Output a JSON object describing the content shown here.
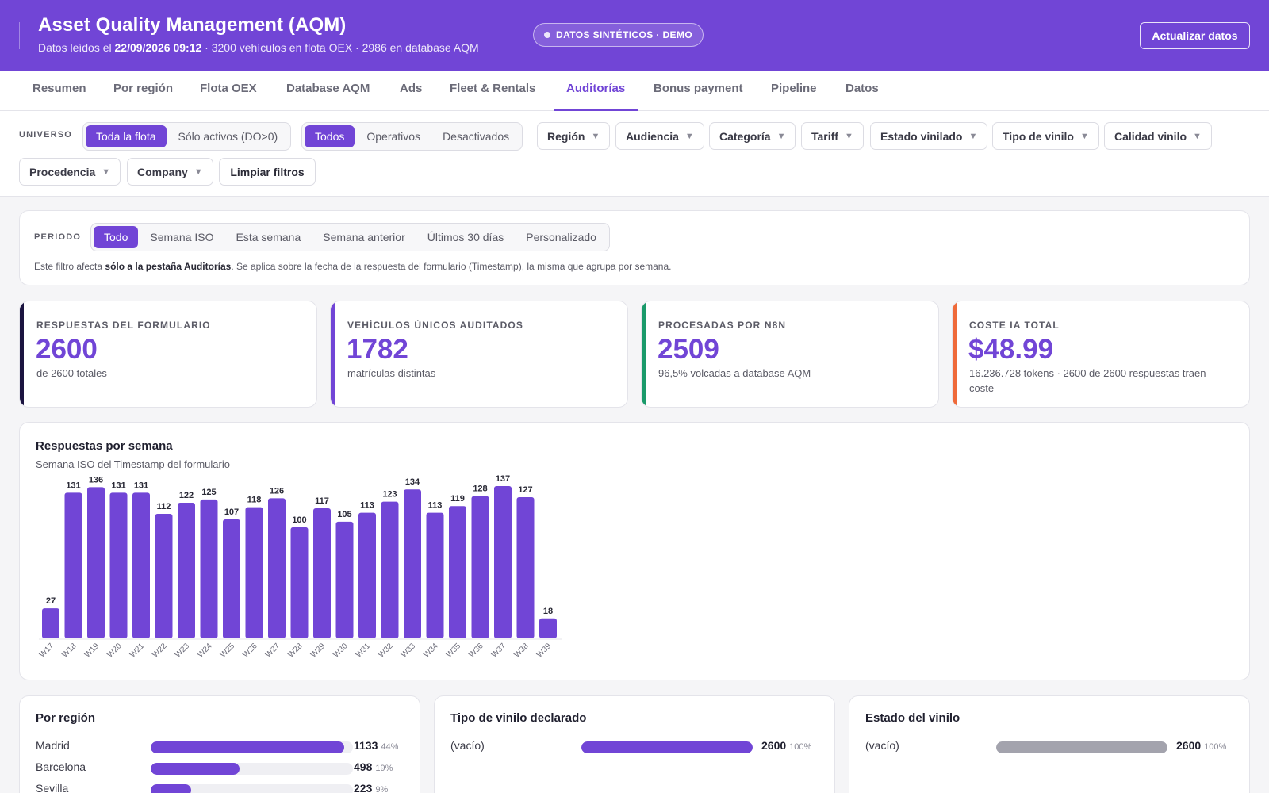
{
  "header": {
    "title": "Asset Quality Management (AQM)",
    "subtitle_prefix": "Datos leídos el",
    "subtitle_date": "22/09/2026 09:12",
    "subtitle_suffix": "· 3200 vehículos en flota OEX · 2986 en database AQM",
    "badge": "DATOS SINTÉTICOS · DEMO",
    "refresh_label": "Actualizar datos"
  },
  "tabs": [
    {
      "label": "Resumen"
    },
    {
      "label": "Por región"
    },
    {
      "label": "Flota OEX"
    },
    {
      "label": "Database AQM"
    },
    {
      "label": "Ads"
    },
    {
      "label": "Fleet & Rentals"
    },
    {
      "label": "Auditorías"
    },
    {
      "label": "Bonus payment"
    },
    {
      "label": "Pipeline"
    },
    {
      "label": "Datos"
    }
  ],
  "active_tab": "Auditorías",
  "filters": {
    "universo_label": "UNIVERSO",
    "universe_options": [
      "Toda la flota",
      "Sólo activos (DO>0)"
    ],
    "universe_selected": "Toda la flota",
    "status_options": [
      "Todos",
      "Operativos",
      "Desactivados"
    ],
    "status_selected": "Todos",
    "dropdowns": [
      "Región",
      "Audiencia",
      "Categoría",
      "Tariff",
      "Estado vinilado",
      "Tipo de vinilo",
      "Calidad vinilo",
      "Procedencia",
      "Company"
    ],
    "clear_label": "Limpiar filtros"
  },
  "periodo": {
    "label": "PERIODO",
    "options": [
      "Todo",
      "Semana ISO",
      "Esta semana",
      "Semana anterior",
      "Últimos 30 días",
      "Personalizado"
    ],
    "selected": "Todo",
    "note_prefix": "Este filtro afecta",
    "note_bold": "sólo a la pestaña Auditorías",
    "note_suffix": ". Se aplica sobre la fecha de la respuesta del formulario (Timestamp), la misma que agrupa por semana."
  },
  "kpis": [
    {
      "label": "RESPUESTAS DEL FORMULARIO",
      "value": "2600",
      "sub": "de 2600 totales",
      "accent": "#1b1440"
    },
    {
      "label": "VEHÍCULOS ÚNICOS AUDITADOS",
      "value": "1782",
      "sub": "matrículas distintas",
      "accent": "#7145d6"
    },
    {
      "label": "PROCESADAS POR N8N",
      "value": "2509",
      "sub": "96,5% volcadas a database AQM",
      "accent": "#1a9a6a"
    },
    {
      "label": "COSTE IA TOTAL",
      "value": "$48.99",
      "sub": "16.236.728 tokens · 2600 de 2600 respuestas traen coste",
      "accent": "#ef6a3a"
    }
  ],
  "chart_data": {
    "type": "bar",
    "title": "Respuestas por semana",
    "subtitle": "Semana ISO del Timestamp del formulario",
    "categories": [
      "W17",
      "W18",
      "W19",
      "W20",
      "W21",
      "W22",
      "W23",
      "W24",
      "W25",
      "W26",
      "W27",
      "W28",
      "W29",
      "W30",
      "W31",
      "W32",
      "W33",
      "W34",
      "W35",
      "W36",
      "W37",
      "W38",
      "W39"
    ],
    "values": [
      27,
      131,
      136,
      131,
      131,
      112,
      122,
      125,
      107,
      118,
      126,
      100,
      117,
      105,
      113,
      123,
      134,
      113,
      119,
      128,
      137,
      127,
      18
    ],
    "ylim": [
      0,
      137
    ],
    "color": "#7145d6",
    "data_labels": true,
    "grid": false
  },
  "distributions": [
    {
      "title": "Por región",
      "rows": [
        {
          "label": "Madrid",
          "count": "1133",
          "pct": "44%",
          "fraction": 0.957
        },
        {
          "label": "Barcelona",
          "count": "498",
          "pct": "19%",
          "fraction": 0.44
        },
        {
          "label": "Sevilla",
          "count": "223",
          "pct": "9%",
          "fraction": 0.2
        }
      ],
      "color": "#7145d6"
    },
    {
      "title": "Tipo de vinilo declarado",
      "rows": [
        {
          "label": "(vacío)",
          "count": "2600",
          "pct": "100%",
          "fraction": 1.0
        }
      ],
      "color": "#7145d6"
    },
    {
      "title": "Estado del vinilo",
      "rows": [
        {
          "label": "(vacío)",
          "count": "2600",
          "pct": "100%",
          "fraction": 1.0
        }
      ],
      "color": "#a3a3ad"
    }
  ]
}
